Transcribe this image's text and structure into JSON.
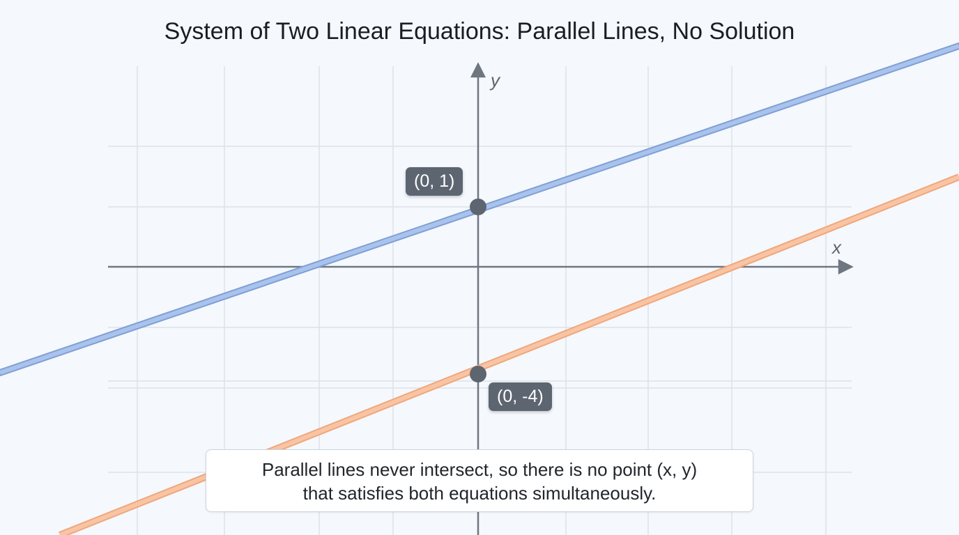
{
  "title": "System of Two Linear Equations: Parallel Lines, No Solution",
  "axes": {
    "x_label": "x",
    "y_label": "y"
  },
  "points": [
    {
      "label": "(0, 1)",
      "x": 0,
      "y": 1
    },
    {
      "label": "(0, -4)",
      "x": 0,
      "y": -4
    }
  ],
  "lines": [
    {
      "y_intercept": 1,
      "color": "#8fb0e0"
    },
    {
      "y_intercept": -4,
      "color": "#f5b48e"
    }
  ],
  "note": {
    "line1": "Parallel lines never intersect, so there is no point (x, y)",
    "line2": "that satisfies both equations simultaneously."
  }
}
